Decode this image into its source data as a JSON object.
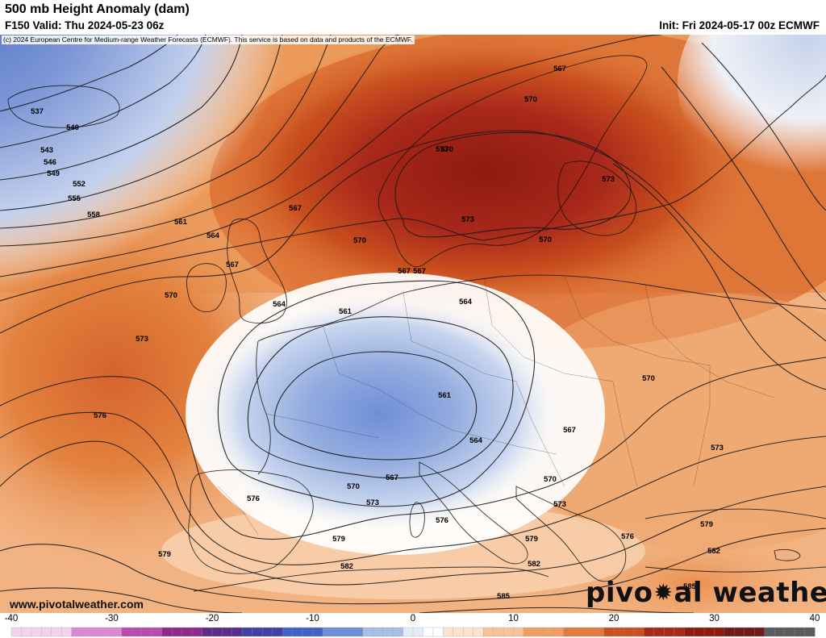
{
  "header": {
    "title": "500 mb Height Anomaly (dam)",
    "valid": "F150 Valid: Thu 2024-05-23 06z",
    "init": "Init: Fri 2024-05-17 00z ECMWF"
  },
  "copyright": "(c) 2024 European Centre for Medium-range Weather Forecasts (ECMWF). This service is based on data and products of the ECMWF.",
  "website": "www.pivotalweather.com",
  "logo": {
    "left": "pivo",
    "right": "al weather"
  },
  "contour_labels": [
    "537",
    "540",
    "543",
    "546",
    "549",
    "552",
    "555",
    "558",
    "561",
    "564",
    "567",
    "570",
    "573",
    "576",
    "579",
    "582",
    "585"
  ],
  "labels_shown": [
    {
      "t": "537"
    },
    {
      "t": "540"
    },
    {
      "t": "543"
    },
    {
      "t": "546"
    },
    {
      "t": "549"
    },
    {
      "t": "552"
    },
    {
      "t": "555"
    },
    {
      "t": "558"
    },
    {
      "t": "561"
    },
    {
      "t": "564"
    },
    {
      "t": "567"
    },
    {
      "t": "567"
    },
    {
      "t": "570"
    },
    {
      "t": "570"
    },
    {
      "t": "573"
    },
    {
      "t": "576"
    },
    {
      "t": "579"
    },
    {
      "t": "573"
    },
    {
      "t": "570"
    },
    {
      "t": "567"
    },
    {
      "t": "564"
    },
    {
      "t": "561"
    },
    {
      "t": "561"
    },
    {
      "t": "564"
    },
    {
      "t": "567"
    },
    {
      "t": "570"
    },
    {
      "t": "573"
    },
    {
      "t": "576"
    },
    {
      "t": "576"
    },
    {
      "t": "579"
    },
    {
      "t": "579"
    },
    {
      "t": "582"
    },
    {
      "t": "582"
    },
    {
      "t": "585"
    },
    {
      "t": "585"
    },
    {
      "t": "570"
    },
    {
      "t": "573"
    },
    {
      "t": "573"
    },
    {
      "t": "576"
    },
    {
      "t": "579"
    },
    {
      "t": "582"
    },
    {
      "t": "564"
    },
    {
      "t": "567"
    },
    {
      "t": "570"
    },
    {
      "t": "573"
    },
    {
      "t": "567"
    },
    {
      "t": "570"
    },
    {
      "t": "573"
    },
    {
      "t": "570"
    },
    {
      "t": "567"
    }
  ],
  "colorbar": {
    "ticks": [
      "-40",
      "-30",
      "-20",
      "-10",
      "0",
      "10",
      "20",
      "30",
      "40"
    ],
    "min": -40,
    "max": 40
  },
  "colors": {
    "deep_red": "#8e1a0e",
    "red": "#c2421a",
    "orange": "#e5823f",
    "light_orange": "#f6c79b",
    "white": "#ffffff",
    "light_blue": "#d3e0f4",
    "blue": "#8fa8de",
    "deep_blue": "#4d6fc7"
  }
}
